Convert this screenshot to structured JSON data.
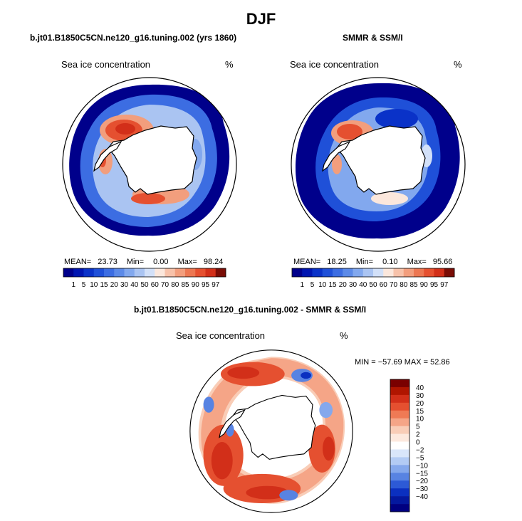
{
  "title": "DJF",
  "chart_data": [
    {
      "type": "heatmap",
      "projection": "south-polar-stereographic",
      "title": "b.jt01.B1850C5CN.ne120_g16.tuning.002 (yrs 1860)",
      "variable": "Sea ice concentration",
      "units": "%",
      "stats": {
        "mean_label": "MEAN=",
        "mean": "23.73",
        "min_label": "Min=",
        "min": "0.00",
        "max_label": "Max=",
        "max": "98.24"
      },
      "colorbar_levels": [
        "1",
        "5",
        "10",
        "15",
        "20",
        "30",
        "40",
        "50",
        "60",
        "70",
        "80",
        "85",
        "90",
        "95",
        "97"
      ]
    },
    {
      "type": "heatmap",
      "projection": "south-polar-stereographic",
      "title": "SMMR & SSM/I",
      "variable": "Sea ice concentration",
      "units": "%",
      "stats": {
        "mean_label": "MEAN=",
        "mean": "18.25",
        "min_label": "Min=",
        "min": "0.10",
        "max_label": "Max=",
        "max": "95.66"
      },
      "colorbar_levels": [
        "1",
        "5",
        "10",
        "15",
        "20",
        "30",
        "40",
        "50",
        "60",
        "70",
        "80",
        "85",
        "90",
        "95",
        "97"
      ]
    },
    {
      "type": "heatmap",
      "projection": "south-polar-stereographic",
      "title": "b.jt01.B1850C5CN.ne120_g16.tuning.002 - SMMR & SSM/I",
      "variable": "Sea ice concentration",
      "units": "%",
      "stats_text": "MIN = −57.69 MAX =  52.86",
      "colorbar_levels": [
        "40",
        "30",
        "20",
        "15",
        "10",
        "5",
        "2",
        "0",
        "−2",
        "−5",
        "−10",
        "−15",
        "−20",
        "−30",
        "−40"
      ]
    }
  ],
  "colors": {
    "sequential": [
      "#00008b",
      "#0015b0",
      "#0a32c8",
      "#1f50d8",
      "#3c6de2",
      "#5c8ae8",
      "#82a8ee",
      "#aac4f2",
      "#d2e0f8",
      "#fbe7dc",
      "#f7c2aa",
      "#f29e7d",
      "#ec7752",
      "#e55030",
      "#d22f19",
      "#7a0d06"
    ],
    "diverging": [
      "#7a0000",
      "#b01500",
      "#d22f19",
      "#e55030",
      "#ef7a55",
      "#f5a587",
      "#f9cdb7",
      "#fde9de",
      "#ffffff",
      "#d9e6fa",
      "#b3cbf4",
      "#85a8ec",
      "#5883e2",
      "#2d5ad6",
      "#0b30c0",
      "#04189e",
      "#000080"
    ],
    "land": "#ffffff",
    "coast": "#000000"
  }
}
